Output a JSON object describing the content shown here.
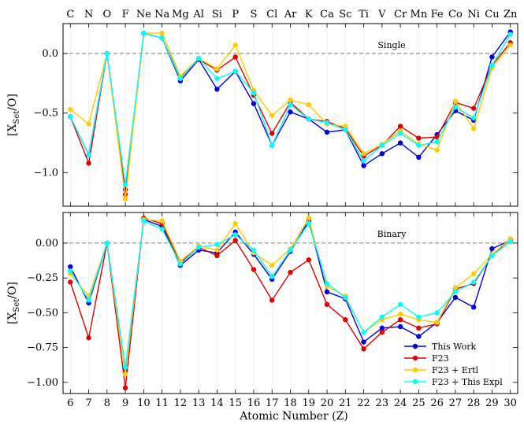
{
  "chart_data": {
    "type": "line",
    "element_labels": [
      "C",
      "N",
      "O",
      "F",
      "Ne",
      "Na",
      "Mg",
      "Al",
      "Si",
      "P",
      "S",
      "Cl",
      "Ar",
      "K",
      "Ca",
      "Sc",
      "Ti",
      "V",
      "Cr",
      "Mn",
      "Fe",
      "Co",
      "Ni",
      "Cu",
      "Zn"
    ],
    "x": [
      6,
      7,
      8,
      9,
      10,
      11,
      12,
      13,
      14,
      15,
      16,
      17,
      18,
      19,
      20,
      21,
      22,
      23,
      24,
      25,
      26,
      27,
      28,
      29,
      30
    ],
    "xlabel": "Atomic Number (Z)",
    "ylabel_main": "[X",
    "ylabel_sub": "Set",
    "ylabel_tail": "/O]",
    "legend": {
      "placement": "lower-right",
      "entries": [
        "This Work",
        "F23",
        "F23 + Ertl",
        "F23 + This Expl"
      ]
    },
    "colors": [
      "#0000dd",
      "#e00000",
      "#ffcc00",
      "#00ffff"
    ],
    "panels": [
      {
        "label": "Single",
        "ylim": [
          -1.28,
          0.25
        ],
        "yticks": [
          0.0,
          -0.5,
          -1.0
        ],
        "ytick_labels": [
          "0.0",
          "−0.5",
          "−1.0"
        ],
        "series": [
          {
            "values": [
              -0.53,
              -0.85,
              0.0,
              -1.14,
              0.17,
              0.13,
              -0.23,
              -0.05,
              -0.3,
              -0.15,
              -0.42,
              -0.77,
              -0.49,
              -0.55,
              -0.66,
              -0.64,
              -0.94,
              -0.84,
              -0.75,
              -0.87,
              -0.68,
              -0.48,
              -0.56,
              -0.03,
              0.18
            ]
          },
          {
            "values": [
              -0.53,
              -0.92,
              0.0,
              -1.18,
              0.17,
              0.13,
              -0.2,
              -0.05,
              -0.14,
              -0.03,
              -0.35,
              -0.67,
              -0.41,
              -0.55,
              -0.57,
              -0.63,
              -0.86,
              -0.77,
              -0.61,
              -0.71,
              -0.7,
              -0.41,
              -0.46,
              -0.1,
              0.09
            ]
          },
          {
            "values": [
              -0.47,
              -0.59,
              0.0,
              -1.22,
              0.17,
              0.17,
              -0.19,
              -0.04,
              -0.13,
              0.07,
              -0.31,
              -0.52,
              -0.39,
              -0.43,
              -0.59,
              -0.61,
              -0.84,
              -0.76,
              -0.65,
              -0.76,
              -0.81,
              -0.4,
              -0.63,
              -0.12,
              0.07
            ]
          },
          {
            "values": [
              -0.53,
              -0.85,
              0.0,
              -1.1,
              0.17,
              0.13,
              -0.21,
              -0.04,
              -0.21,
              -0.15,
              -0.33,
              -0.77,
              -0.43,
              -0.55,
              -0.58,
              -0.64,
              -0.9,
              -0.77,
              -0.67,
              -0.77,
              -0.74,
              -0.45,
              -0.54,
              -0.1,
              0.16
            ]
          }
        ]
      },
      {
        "label": "Binary",
        "ylim": [
          -1.08,
          0.22
        ],
        "yticks": [
          0.0,
          -0.25,
          -0.5,
          -0.75,
          -1.0
        ],
        "ytick_labels": [
          "0.00",
          "−0.25",
          "−0.50",
          "−0.75",
          "−1.00"
        ],
        "series": [
          {
            "values": [
              -0.17,
              -0.43,
              0.0,
              -0.91,
              0.17,
              0.12,
              -0.16,
              -0.05,
              -0.07,
              0.08,
              -0.08,
              -0.26,
              -0.06,
              0.16,
              -0.35,
              -0.4,
              -0.71,
              -0.61,
              -0.6,
              -0.67,
              -0.57,
              -0.39,
              -0.46,
              -0.04,
              0.02
            ]
          },
          {
            "values": [
              -0.28,
              -0.68,
              0.0,
              -1.04,
              0.18,
              0.14,
              -0.14,
              -0.03,
              -0.09,
              0.02,
              -0.19,
              -0.41,
              -0.21,
              -0.12,
              -0.44,
              -0.55,
              -0.76,
              -0.64,
              -0.55,
              -0.61,
              -0.58,
              -0.33,
              -0.29,
              -0.09,
              0.03
            ]
          },
          {
            "values": [
              -0.22,
              -0.38,
              0.0,
              -0.94,
              0.17,
              0.16,
              -0.13,
              -0.02,
              -0.05,
              0.14,
              -0.07,
              -0.16,
              -0.04,
              0.18,
              -0.31,
              -0.38,
              -0.64,
              -0.55,
              -0.51,
              -0.55,
              -0.57,
              -0.32,
              -0.22,
              -0.08,
              0.03
            ]
          },
          {
            "values": [
              -0.2,
              -0.41,
              0.0,
              -0.89,
              0.16,
              0.1,
              -0.15,
              -0.03,
              -0.01,
              0.06,
              -0.05,
              -0.24,
              -0.05,
              0.14,
              -0.29,
              -0.39,
              -0.64,
              -0.53,
              -0.44,
              -0.53,
              -0.5,
              -0.35,
              -0.28,
              -0.09,
              0.01
            ]
          }
        ]
      }
    ]
  }
}
